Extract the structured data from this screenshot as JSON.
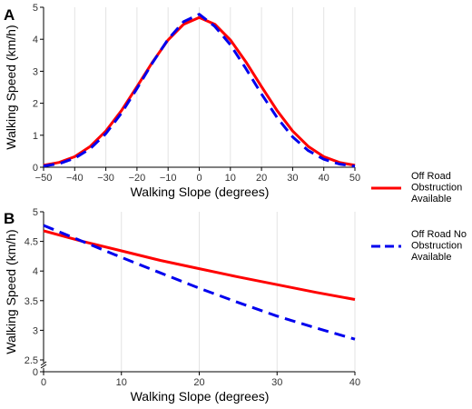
{
  "colors": {
    "off_road_obstruction": "#ff0000",
    "off_road_no_obstruction": "#0000ee",
    "grid": "#e3e3e3"
  },
  "legend": {
    "placement": "right",
    "items": [
      {
        "lines": [
          "Off Road",
          "Obstruction",
          "Available"
        ],
        "color": "#ff0000",
        "dash": "solid"
      },
      {
        "lines": [
          "Off Road No",
          "Obstruction",
          "Available"
        ],
        "color": "#0000ee",
        "dash": "dashed"
      }
    ]
  },
  "chart_data": [
    {
      "panel": "A",
      "type": "line",
      "xlabel": "Walking Slope (degrees)",
      "ylabel": "Walking Speed (km/h)",
      "xlim": [
        -50,
        50
      ],
      "ylim": [
        0,
        5
      ],
      "xticks": [
        -50,
        -40,
        -30,
        -20,
        -10,
        0,
        10,
        20,
        30,
        40,
        50
      ],
      "xtick_labels": [
        "−50",
        "−40",
        "−30",
        "−20",
        "−10",
        "0",
        "10",
        "20",
        "30",
        "40",
        "50"
      ],
      "yticks": [
        0,
        1,
        2,
        3,
        4,
        5
      ],
      "ytick_labels": [
        "0",
        "1",
        "2",
        "3",
        "4",
        "5"
      ],
      "grid": "vertical",
      "series": [
        {
          "name": "Off Road Obstruction Available",
          "x": [
            -50,
            -45,
            -40,
            -35,
            -30,
            -25,
            -20,
            -15,
            -10,
            -5,
            0,
            5,
            10,
            15,
            20,
            25,
            30,
            35,
            40,
            45,
            50
          ],
          "y": [
            0.06,
            0.15,
            0.33,
            0.65,
            1.13,
            1.77,
            2.52,
            3.29,
            3.98,
            4.47,
            4.68,
            4.47,
            3.98,
            3.29,
            2.52,
            1.77,
            1.13,
            0.65,
            0.33,
            0.15,
            0.06
          ]
        },
        {
          "name": "Off Road No Obstruction Available",
          "x": [
            -50,
            -45,
            -40,
            -35,
            -30,
            -25,
            -20,
            -15,
            -10,
            -5,
            0,
            5,
            10,
            15,
            20,
            25,
            30,
            35,
            40,
            45,
            50
          ],
          "y": [
            0.04,
            0.11,
            0.28,
            0.58,
            1.05,
            1.69,
            2.46,
            3.27,
            4.0,
            4.55,
            4.78,
            4.4,
            3.83,
            3.08,
            2.29,
            1.55,
            0.95,
            0.52,
            0.25,
            0.1,
            0.03
          ]
        }
      ]
    },
    {
      "panel": "B",
      "type": "line",
      "xlabel": "Walking Slope (degrees)",
      "ylabel": "Walking Speed (km/h)",
      "xlim": [
        0,
        40
      ],
      "ylim": [
        0,
        5
      ],
      "axis_break": true,
      "xticks": [
        0,
        10,
        20,
        30,
        40
      ],
      "xtick_labels": [
        "0",
        "10",
        "20",
        "30",
        "40"
      ],
      "yticks": [
        0,
        2.5,
        3,
        3.5,
        4,
        4.5,
        5
      ],
      "ytick_labels": [
        "0",
        "2.5",
        "3",
        "3.5",
        "4",
        "4.5",
        "5"
      ],
      "grid": "vertical",
      "series": [
        {
          "name": "Off Road Obstruction Available",
          "x": [
            0,
            5,
            10,
            15,
            20,
            25,
            30,
            35,
            40
          ],
          "y": [
            4.68,
            4.5,
            4.34,
            4.18,
            4.04,
            3.9,
            3.77,
            3.64,
            3.52
          ]
        },
        {
          "name": "Off Road No Obstruction Available",
          "x": [
            0,
            5,
            10,
            15,
            20,
            25,
            30,
            35,
            40
          ],
          "y": [
            4.77,
            4.5,
            4.23,
            3.97,
            3.71,
            3.47,
            3.24,
            3.04,
            2.85
          ]
        }
      ]
    }
  ],
  "panels": [
    {
      "letter": "A"
    },
    {
      "letter": "B"
    }
  ]
}
